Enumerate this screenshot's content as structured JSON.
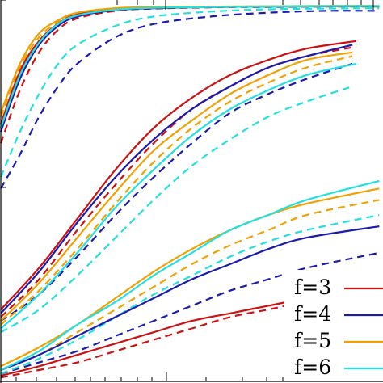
{
  "chart_data": {
    "type": "line",
    "title": "",
    "xlabel": "",
    "ylabel": "",
    "xlim": [
      0,
      1
    ],
    "ylim": [
      0,
      1
    ],
    "grid": false,
    "legend_position": "bottom-right",
    "legend": [
      {
        "label": "f=3",
        "color": "#cc1111"
      },
      {
        "label": "f=4",
        "color": "#1a1ab0"
      },
      {
        "label": "f=5",
        "color": "#f0a000"
      },
      {
        "label": "f=6",
        "color": "#22e0e0"
      }
    ],
    "series": [
      {
        "group": 1,
        "style": "solid",
        "color": "#cc1111",
        "x": [
          0.0,
          0.05,
          0.1,
          0.15,
          0.2,
          0.3,
          0.4,
          0.55,
          0.7,
          0.85,
          0.99
        ],
        "y": [
          0.68,
          0.82,
          0.9,
          0.946,
          0.97,
          0.984,
          0.988,
          0.99,
          0.991,
          0.992,
          0.992
        ]
      },
      {
        "group": 1,
        "style": "dashed",
        "color": "#cc1111",
        "x": [
          0.0,
          0.05,
          0.1,
          0.15,
          0.2,
          0.3,
          0.4,
          0.55,
          0.7,
          0.85,
          0.99
        ],
        "y": [
          0.63,
          0.77,
          0.87,
          0.93,
          0.96,
          0.98,
          0.986,
          0.989,
          0.99,
          0.991,
          0.991
        ]
      },
      {
        "group": 1,
        "style": "solid",
        "color": "#1a1ab0",
        "x": [
          0.0,
          0.05,
          0.1,
          0.15,
          0.2,
          0.3,
          0.4,
          0.55,
          0.7,
          0.85,
          0.99
        ],
        "y": [
          0.66,
          0.8,
          0.89,
          0.94,
          0.965,
          0.982,
          0.987,
          0.99,
          0.991,
          0.992,
          0.992
        ]
      },
      {
        "group": 1,
        "style": "dashed",
        "color": "#1a1ab0",
        "x": [
          0.0,
          0.05,
          0.1,
          0.15,
          0.2,
          0.3,
          0.4,
          0.55,
          0.7,
          0.85,
          0.99
        ],
        "y": [
          0.51,
          0.6,
          0.7,
          0.78,
          0.84,
          0.91,
          0.945,
          0.965,
          0.975,
          0.98,
          0.98
        ]
      },
      {
        "group": 1,
        "style": "solid",
        "color": "#f0a000",
        "x": [
          0.0,
          0.05,
          0.1,
          0.15,
          0.2,
          0.3,
          0.4,
          0.55,
          0.7,
          0.85,
          0.99
        ],
        "y": [
          0.71,
          0.84,
          0.92,
          0.955,
          0.975,
          0.987,
          0.99,
          0.991,
          0.992,
          0.993,
          0.993
        ]
      },
      {
        "group": 1,
        "style": "dashed",
        "color": "#f0a000",
        "x": [
          0.0,
          0.05,
          0.1,
          0.15,
          0.2,
          0.3,
          0.4,
          0.55,
          0.7,
          0.85,
          0.99
        ],
        "y": [
          0.7,
          0.83,
          0.91,
          0.95,
          0.972,
          0.985,
          0.989,
          0.991,
          0.992,
          0.993,
          0.993
        ]
      },
      {
        "group": 1,
        "style": "solid",
        "color": "#22e0e0",
        "x": [
          0.0,
          0.05,
          0.1,
          0.15,
          0.2,
          0.3,
          0.4,
          0.55,
          0.7,
          0.85,
          0.99
        ],
        "y": [
          0.67,
          0.81,
          0.895,
          0.945,
          0.968,
          0.983,
          0.988,
          0.99,
          0.991,
          0.992,
          0.992
        ]
      },
      {
        "group": 1,
        "style": "dashed",
        "color": "#22e0e0",
        "x": [
          0.0,
          0.05,
          0.1,
          0.15,
          0.2,
          0.3,
          0.4,
          0.55,
          0.7,
          0.85,
          0.99
        ],
        "y": [
          0.54,
          0.66,
          0.76,
          0.84,
          0.89,
          0.94,
          0.965,
          0.978,
          0.984,
          0.986,
          0.987
        ]
      },
      {
        "group": 2,
        "style": "solid",
        "color": "#cc1111",
        "x": [
          0.0,
          0.1,
          0.2,
          0.3,
          0.4,
          0.5,
          0.6,
          0.7,
          0.8,
          0.93
        ],
        "y": [
          0.19,
          0.3,
          0.43,
          0.56,
          0.67,
          0.75,
          0.81,
          0.85,
          0.88,
          0.9
        ]
      },
      {
        "group": 2,
        "style": "dashed",
        "color": "#cc1111",
        "x": [
          0.0,
          0.1,
          0.2,
          0.3,
          0.4,
          0.5,
          0.6,
          0.7,
          0.8,
          0.93
        ],
        "y": [
          0.17,
          0.27,
          0.4,
          0.52,
          0.63,
          0.72,
          0.78,
          0.83,
          0.86,
          0.885
        ]
      },
      {
        "group": 2,
        "style": "solid",
        "color": "#1a1ab0",
        "x": [
          0.0,
          0.1,
          0.2,
          0.3,
          0.4,
          0.5,
          0.6,
          0.7,
          0.8,
          0.92
        ],
        "y": [
          0.18,
          0.29,
          0.42,
          0.54,
          0.64,
          0.72,
          0.78,
          0.83,
          0.86,
          0.89
        ]
      },
      {
        "group": 2,
        "style": "dashed",
        "color": "#1a1ab0",
        "x": [
          0.0,
          0.1,
          0.2,
          0.3,
          0.4,
          0.5,
          0.6,
          0.7,
          0.8,
          0.92
        ],
        "y": [
          0.16,
          0.23,
          0.33,
          0.44,
          0.54,
          0.63,
          0.71,
          0.76,
          0.8,
          0.84
        ]
      },
      {
        "group": 2,
        "style": "solid",
        "color": "#f0a000",
        "x": [
          0.0,
          0.1,
          0.2,
          0.3,
          0.4,
          0.5,
          0.6,
          0.7,
          0.8,
          0.92
        ],
        "y": [
          0.16,
          0.26,
          0.38,
          0.5,
          0.61,
          0.69,
          0.76,
          0.81,
          0.85,
          0.87
        ]
      },
      {
        "group": 2,
        "style": "dashed",
        "color": "#f0a000",
        "x": [
          0.0,
          0.1,
          0.2,
          0.3,
          0.4,
          0.5,
          0.6,
          0.7,
          0.8,
          0.92
        ],
        "y": [
          0.15,
          0.24,
          0.35,
          0.47,
          0.58,
          0.67,
          0.74,
          0.79,
          0.83,
          0.86
        ]
      },
      {
        "group": 2,
        "style": "solid",
        "color": "#22e0e0",
        "x": [
          0.0,
          0.1,
          0.2,
          0.3,
          0.4,
          0.5,
          0.6,
          0.7,
          0.8,
          0.93
        ],
        "y": [
          0.14,
          0.23,
          0.34,
          0.46,
          0.56,
          0.65,
          0.72,
          0.77,
          0.81,
          0.84
        ]
      },
      {
        "group": 2,
        "style": "dashed",
        "color": "#22e0e0",
        "x": [
          0.0,
          0.1,
          0.2,
          0.3,
          0.4,
          0.5,
          0.6,
          0.7,
          0.8,
          0.92
        ],
        "y": [
          0.13,
          0.19,
          0.28,
          0.38,
          0.48,
          0.57,
          0.64,
          0.7,
          0.74,
          0.78
        ]
      },
      {
        "group": 3,
        "style": "solid",
        "color": "#cc1111",
        "x": [
          0.0,
          0.1,
          0.2,
          0.3,
          0.4,
          0.5,
          0.6,
          0.7,
          0.8,
          0.92
        ],
        "y": [
          0.015,
          0.04,
          0.07,
          0.1,
          0.13,
          0.16,
          0.18,
          0.2,
          0.22,
          0.24
        ]
      },
      {
        "group": 3,
        "style": "dashed",
        "color": "#cc1111",
        "x": [
          0.0,
          0.1,
          0.2,
          0.3,
          0.4,
          0.5,
          0.6,
          0.7,
          0.8,
          0.99
        ],
        "y": [
          0.01,
          0.03,
          0.05,
          0.08,
          0.11,
          0.14,
          0.17,
          0.19,
          0.21,
          0.23
        ]
      },
      {
        "group": 3,
        "style": "solid",
        "color": "#1a1ab0",
        "x": [
          0.0,
          0.1,
          0.2,
          0.3,
          0.4,
          0.5,
          0.6,
          0.7,
          0.8,
          0.99
        ],
        "y": [
          0.03,
          0.07,
          0.12,
          0.17,
          0.22,
          0.27,
          0.31,
          0.35,
          0.38,
          0.41
        ]
      },
      {
        "group": 3,
        "style": "dashed",
        "color": "#1a1ab0",
        "x": [
          0.0,
          0.1,
          0.2,
          0.3,
          0.4,
          0.5,
          0.6,
          0.7,
          0.8,
          0.99
        ],
        "y": [
          0.02,
          0.05,
          0.08,
          0.12,
          0.16,
          0.2,
          0.24,
          0.27,
          0.3,
          0.34
        ]
      },
      {
        "group": 3,
        "style": "solid",
        "color": "#f0a000",
        "x": [
          0.0,
          0.1,
          0.2,
          0.3,
          0.4,
          0.5,
          0.6,
          0.7,
          0.8,
          0.99
        ],
        "y": [
          0.04,
          0.09,
          0.15,
          0.22,
          0.29,
          0.35,
          0.4,
          0.44,
          0.47,
          0.51
        ]
      },
      {
        "group": 3,
        "style": "dashed",
        "color": "#f0a000",
        "x": [
          0.0,
          0.1,
          0.2,
          0.3,
          0.4,
          0.5,
          0.6,
          0.7,
          0.8,
          0.99
        ],
        "y": [
          0.03,
          0.07,
          0.13,
          0.19,
          0.25,
          0.31,
          0.36,
          0.4,
          0.44,
          0.48
        ]
      },
      {
        "group": 3,
        "style": "solid",
        "color": "#22e0e0",
        "x": [
          0.0,
          0.1,
          0.2,
          0.3,
          0.4,
          0.5,
          0.6,
          0.7,
          0.8,
          0.99
        ],
        "y": [
          0.03,
          0.08,
          0.15,
          0.21,
          0.28,
          0.34,
          0.4,
          0.44,
          0.48,
          0.53
        ]
      },
      {
        "group": 3,
        "style": "dashed",
        "color": "#22e0e0",
        "x": [
          0.0,
          0.1,
          0.2,
          0.3,
          0.4,
          0.5,
          0.6,
          0.7,
          0.8,
          0.99
        ],
        "y": [
          0.02,
          0.06,
          0.11,
          0.17,
          0.23,
          0.28,
          0.33,
          0.37,
          0.4,
          0.44
        ]
      }
    ]
  }
}
